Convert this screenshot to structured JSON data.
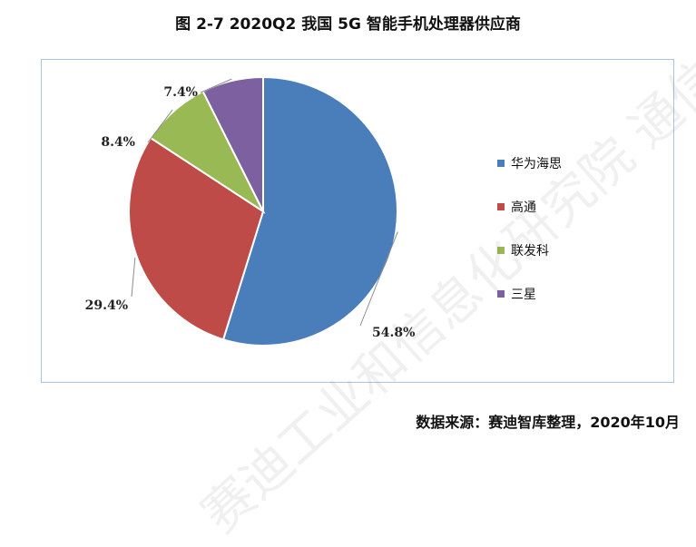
{
  "title": "图 2-7 2020Q2 我国 5G 智能手机处理器供应商",
  "source": "数据来源：赛迪智库整理，2020年10月",
  "watermark": "赛迪工业和信息化研究院 通信产业报全媒体",
  "chart_data": {
    "type": "pie",
    "title": "图 2-7 2020Q2 我国 5G 智能手机处理器供应商",
    "legend_position": "right",
    "slices": [
      {
        "name": "华为海思",
        "value": 54.8,
        "label": "54.8%",
        "color": "#4a7ebb"
      },
      {
        "name": "高通",
        "value": 29.4,
        "label": "29.4%",
        "color": "#be4b48"
      },
      {
        "name": "联发科",
        "value": 8.4,
        "label": "8.4%",
        "color": "#98b954"
      },
      {
        "name": "三星",
        "value": 7.4,
        "label": "7.4%",
        "color": "#7d60a0"
      }
    ]
  }
}
